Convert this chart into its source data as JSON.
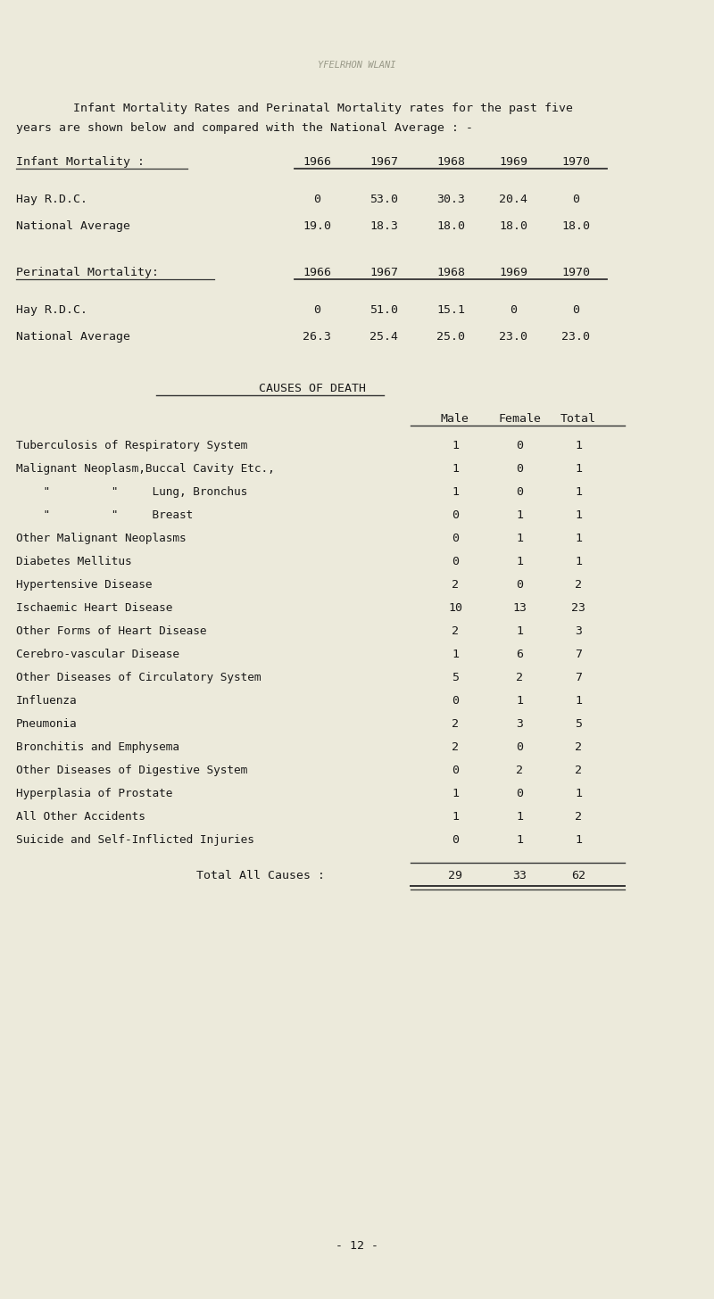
{
  "bg_color": "#eceadb",
  "text_color": "#1a1a1a",
  "watermark": "YFELRHON WLANI",
  "header_line1": "    Infant Mortality Rates and Perinatal Mortality rates for the past five",
  "header_line2": "years are shown below and compared with the National Average : -",
  "infant_label": "Infant Mortality :",
  "perinatal_label": "Perinatal Mortality:",
  "years": [
    "1966",
    "1967",
    "1968",
    "1969",
    "1970"
  ],
  "infant_hay": [
    "0",
    "53.0",
    "30.3",
    "20.4",
    "0"
  ],
  "infant_nat": [
    "19.0",
    "18.3",
    "18.0",
    "18.0",
    "18.0"
  ],
  "perinatal_hay": [
    "0",
    "51.0",
    "15.1",
    "0",
    "0"
  ],
  "perinatal_nat": [
    "26.3",
    "25.4",
    "25.0",
    "23.0",
    "23.0"
  ],
  "causes_title": "CAUSES OF DEATH",
  "col_headers": [
    "Male",
    "Female",
    "Total"
  ],
  "causes": [
    [
      "Tuberculosis of Respiratory System",
      "1",
      "0",
      "1"
    ],
    [
      "Malignant Neoplasm,Buccal Cavity Etc.,",
      "1",
      "0",
      "1"
    ],
    [
      "    \"         \"     Lung, Bronchus",
      "1",
      "0",
      "1"
    ],
    [
      "    \"         \"     Breast",
      "0",
      "1",
      "1"
    ],
    [
      "Other Malignant Neoplasms",
      "0",
      "1",
      "1"
    ],
    [
      "Diabetes Mellitus",
      "0",
      "1",
      "1"
    ],
    [
      "Hypertensive Disease",
      "2",
      "0",
      "2"
    ],
    [
      "Ischaemic Heart Disease",
      "10",
      "13",
      "23"
    ],
    [
      "Other Forms of Heart Disease",
      "2",
      "1",
      "3"
    ],
    [
      "Cerebro-vascular Disease",
      "1",
      "6",
      "7"
    ],
    [
      "Other Diseases of Circulatory System",
      "5",
      "2",
      "7"
    ],
    [
      "Influenza",
      "0",
      "1",
      "1"
    ],
    [
      "Pneumonia",
      "2",
      "3",
      "5"
    ],
    [
      "Bronchitis and Emphysema",
      "2",
      "0",
      "2"
    ],
    [
      "Other Diseases of Digestive System",
      "0",
      "2",
      "2"
    ],
    [
      "Hyperplasia of Prostate",
      "1",
      "0",
      "1"
    ],
    [
      "All Other Accidents",
      "1",
      "1",
      "2"
    ],
    [
      "Suicide and Self-Inflicted Injuries",
      "0",
      "1",
      "1"
    ]
  ],
  "total_label": "Total All Causes :",
  "total_male": "29",
  "total_female": "33",
  "total_total": "62",
  "page_num": "- 12 -"
}
